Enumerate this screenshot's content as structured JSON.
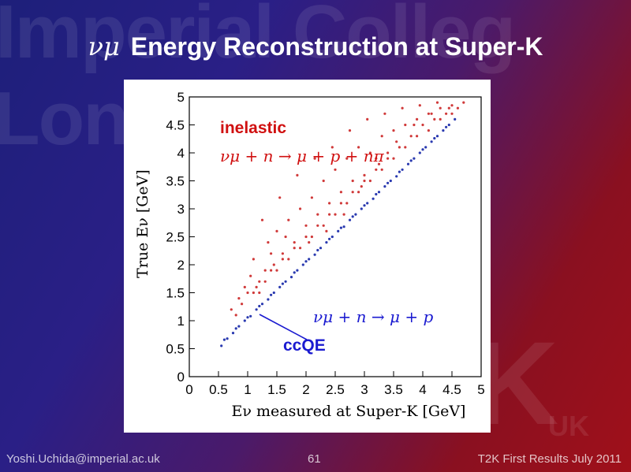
{
  "watermark": {
    "line1": "Imperial Colleg",
    "line2": "Lon",
    "line3": "K",
    "line4": "UK"
  },
  "slide": {
    "title_symbol": "νμ",
    "title_text": "Energy Reconstruction at Super-K",
    "footer_left": "Yoshi.Uchida@imperial.ac.uk",
    "footer_page": "61",
    "footer_right": "T2K First Results July 2011"
  },
  "chart_data": {
    "type": "scatter",
    "xlabel": "Eν  measured at Super-K [GeV]",
    "ylabel": "True Eν [GeV]",
    "xlim": [
      0,
      5
    ],
    "ylim": [
      0,
      5
    ],
    "x_ticks": [
      "0",
      "0.5",
      "1",
      "1.5",
      "2",
      "2.5",
      "3",
      "3.5",
      "4",
      "4.5",
      "5"
    ],
    "y_ticks": [
      "0",
      "0.5",
      "1",
      "1.5",
      "2",
      "2.5",
      "3",
      "3.5",
      "4",
      "4.5",
      "5"
    ],
    "grid": false,
    "annotations": [
      {
        "text": "inelastic",
        "color": "#d01010"
      },
      {
        "text": "νμ + n → μ + p + nπ",
        "color": "#d01010"
      },
      {
        "text": "νμ + n → μ + p",
        "color": "#1a1ad0"
      },
      {
        "text": "ccQE",
        "color": "#1a1ad0"
      }
    ],
    "series": [
      {
        "color": "#d03a3a",
        "x": [
          0.72,
          0.85,
          0.95,
          1.05,
          1.1,
          1.2,
          1.3,
          1.35,
          1.45,
          1.5,
          1.6,
          1.7,
          1.8,
          1.9,
          2.0,
          2.1,
          2.2,
          2.3,
          2.4,
          2.5,
          2.6,
          2.7,
          2.8,
          2.9,
          3.0,
          3.1,
          3.2,
          3.3,
          3.4,
          3.5,
          3.6,
          3.7,
          3.8,
          3.9,
          4.0,
          4.1,
          4.2,
          4.3,
          4.4,
          4.5,
          4.6,
          4.7,
          1.0,
          1.2,
          1.4,
          1.6,
          1.8,
          2.0,
          2.2,
          2.4,
          2.6,
          2.8,
          3.0,
          3.2,
          3.4,
          0.9,
          1.1,
          1.3,
          1.5,
          1.7,
          1.9,
          2.1,
          2.3,
          2.5,
          2.7,
          2.9,
          3.1,
          3.3,
          3.5,
          3.7,
          3.9,
          4.1,
          4.3,
          4.5,
          1.25,
          1.55,
          1.85,
          2.15,
          2.45,
          2.75,
          3.05,
          3.35,
          3.65,
          3.95,
          4.25,
          0.8,
          1.15,
          1.4,
          1.65,
          2.05,
          2.35,
          2.65,
          2.95,
          3.25,
          3.55,
          3.85,
          4.15,
          4.45
        ],
        "y": [
          1.2,
          1.4,
          1.6,
          1.8,
          2.1,
          1.5,
          1.9,
          2.4,
          2.0,
          2.6,
          2.2,
          2.8,
          2.4,
          3.0,
          2.7,
          3.2,
          2.9,
          3.5,
          3.1,
          3.7,
          3.3,
          3.9,
          3.5,
          4.1,
          3.6,
          4.0,
          3.9,
          4.3,
          4.0,
          4.4,
          4.1,
          4.5,
          4.3,
          4.6,
          4.5,
          4.7,
          4.6,
          4.8,
          4.7,
          4.85,
          4.8,
          4.9,
          1.5,
          1.7,
          1.9,
          2.1,
          2.3,
          2.5,
          2.7,
          2.9,
          3.1,
          3.3,
          3.5,
          3.7,
          3.9,
          1.3,
          1.5,
          1.7,
          1.9,
          2.1,
          2.3,
          2.5,
          2.7,
          2.9,
          3.1,
          3.3,
          3.5,
          3.7,
          3.9,
          4.1,
          4.3,
          4.4,
          4.6,
          4.7,
          2.8,
          3.2,
          3.6,
          3.9,
          4.1,
          4.4,
          4.6,
          4.7,
          4.8,
          4.85,
          4.9,
          1.1,
          1.6,
          2.2,
          2.5,
          2.4,
          2.6,
          2.9,
          3.4,
          3.8,
          4.2,
          4.5,
          4.7,
          4.8
        ]
      },
      {
        "color": "#2a3ab0",
        "x": [
          0.55,
          0.65,
          0.75,
          0.85,
          0.95,
          1.05,
          1.15,
          1.25,
          1.35,
          1.45,
          1.55,
          1.65,
          1.75,
          1.85,
          1.95,
          2.05,
          2.15,
          2.25,
          2.35,
          2.45,
          2.55,
          2.65,
          2.75,
          2.85,
          2.95,
          3.05,
          3.15,
          3.25,
          3.35,
          3.45,
          3.55,
          3.65,
          3.75,
          3.85,
          3.95,
          4.05,
          4.15,
          4.25,
          4.35,
          4.45,
          4.55,
          0.6,
          0.8,
          1.0,
          1.2,
          1.4,
          1.6,
          1.8,
          2.0,
          2.2,
          2.4,
          2.6,
          2.8,
          3.0,
          3.2,
          3.4,
          3.6,
          3.8,
          4.0,
          4.2,
          4.4
        ],
        "y": [
          0.55,
          0.68,
          0.78,
          0.9,
          1.0,
          1.08,
          1.2,
          1.3,
          1.38,
          1.5,
          1.6,
          1.7,
          1.78,
          1.9,
          2.0,
          2.1,
          2.18,
          2.3,
          2.4,
          2.5,
          2.6,
          2.68,
          2.8,
          2.9,
          3.0,
          3.1,
          3.18,
          3.3,
          3.4,
          3.5,
          3.58,
          3.7,
          3.8,
          3.9,
          4.0,
          4.1,
          4.2,
          4.3,
          4.4,
          4.5,
          4.6,
          0.66,
          0.86,
          1.06,
          1.26,
          1.46,
          1.66,
          1.86,
          2.06,
          2.26,
          2.46,
          2.66,
          2.86,
          3.06,
          3.26,
          3.46,
          3.66,
          3.86,
          4.06,
          4.26,
          4.46
        ]
      }
    ]
  }
}
